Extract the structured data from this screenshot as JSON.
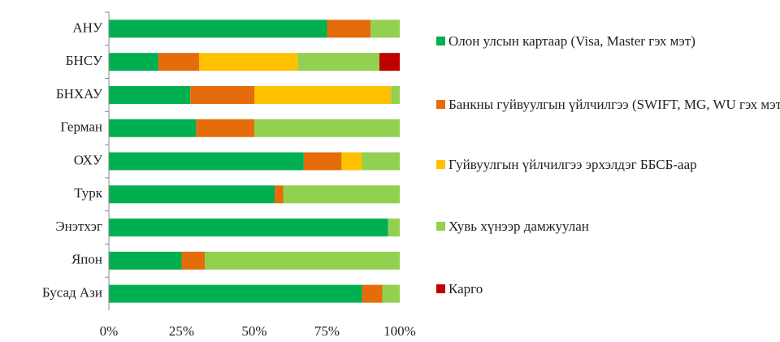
{
  "chart_data": {
    "type": "stacked-barh",
    "categories": [
      "АНУ",
      "БНСУ",
      "БНХАУ",
      "Герман",
      "ОХУ",
      "Турк",
      "Энэтхэг",
      "Япон",
      "Бусад Ази"
    ],
    "series": [
      {
        "name": "Олон улсын картаар (Visa, Master гэх мэт)",
        "color": "#00b050",
        "values": [
          75,
          17,
          28,
          30,
          67,
          57,
          96,
          25,
          87
        ]
      },
      {
        "name": "Банкны гуйвуулгын үйлчилгээ (SWIFT, MG, WU гэх мэт)",
        "color": "#e46c0a",
        "values": [
          15,
          14,
          22,
          20,
          13,
          3,
          0,
          8,
          7
        ]
      },
      {
        "name": "Гуйвуулгын үйлчилгээ эрхэлдэг ББСБ-аар",
        "color": "#ffc000",
        "values": [
          0,
          34,
          47,
          0,
          7,
          0,
          0,
          0,
          0
        ]
      },
      {
        "name": "Хувь хүнээр дамжуулан",
        "color": "#92d050",
        "values": [
          10,
          28,
          3,
          50,
          13,
          40,
          4,
          67,
          6
        ]
      },
      {
        "name": "Карго",
        "color": "#c00000",
        "values": [
          0,
          7,
          0,
          0,
          0,
          0,
          0,
          0,
          0
        ]
      }
    ],
    "xlim": [
      0,
      100
    ],
    "xticks": [
      {
        "value": 0,
        "label": "0%"
      },
      {
        "value": 25,
        "label": "25%"
      },
      {
        "value": 50,
        "label": "50%"
      },
      {
        "value": 75,
        "label": "75%"
      },
      {
        "value": 100,
        "label": "100%"
      }
    ],
    "legend": "right"
  }
}
